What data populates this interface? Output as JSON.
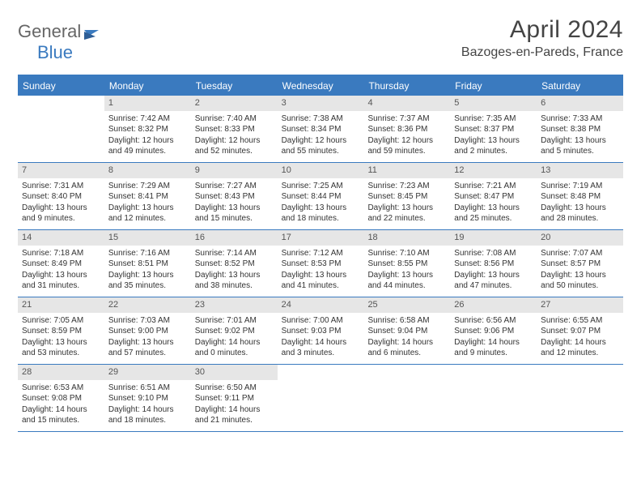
{
  "brand": {
    "part1": "General",
    "part2": "Blue"
  },
  "title": "April 2024",
  "location": "Bazoges-en-Pareds, France",
  "colors": {
    "accent": "#3a7abf",
    "header_bg": "#3a7abf",
    "daynum_bg": "#e6e6e6",
    "row_border": "#3a7abf",
    "text": "#333333",
    "title_text": "#444444"
  },
  "typography": {
    "title_fontsize": 30,
    "location_fontsize": 16,
    "header_fontsize": 12,
    "cell_fontsize": 10
  },
  "weekdays": [
    "Sunday",
    "Monday",
    "Tuesday",
    "Wednesday",
    "Thursday",
    "Friday",
    "Saturday"
  ],
  "first_weekday_offset": 1,
  "days": [
    {
      "n": 1,
      "sunrise": "7:42 AM",
      "sunset": "8:32 PM",
      "daylight": "12 hours and 49 minutes."
    },
    {
      "n": 2,
      "sunrise": "7:40 AM",
      "sunset": "8:33 PM",
      "daylight": "12 hours and 52 minutes."
    },
    {
      "n": 3,
      "sunrise": "7:38 AM",
      "sunset": "8:34 PM",
      "daylight": "12 hours and 55 minutes."
    },
    {
      "n": 4,
      "sunrise": "7:37 AM",
      "sunset": "8:36 PM",
      "daylight": "12 hours and 59 minutes."
    },
    {
      "n": 5,
      "sunrise": "7:35 AM",
      "sunset": "8:37 PM",
      "daylight": "13 hours and 2 minutes."
    },
    {
      "n": 6,
      "sunrise": "7:33 AM",
      "sunset": "8:38 PM",
      "daylight": "13 hours and 5 minutes."
    },
    {
      "n": 7,
      "sunrise": "7:31 AM",
      "sunset": "8:40 PM",
      "daylight": "13 hours and 9 minutes."
    },
    {
      "n": 8,
      "sunrise": "7:29 AM",
      "sunset": "8:41 PM",
      "daylight": "13 hours and 12 minutes."
    },
    {
      "n": 9,
      "sunrise": "7:27 AM",
      "sunset": "8:43 PM",
      "daylight": "13 hours and 15 minutes."
    },
    {
      "n": 10,
      "sunrise": "7:25 AM",
      "sunset": "8:44 PM",
      "daylight": "13 hours and 18 minutes."
    },
    {
      "n": 11,
      "sunrise": "7:23 AM",
      "sunset": "8:45 PM",
      "daylight": "13 hours and 22 minutes."
    },
    {
      "n": 12,
      "sunrise": "7:21 AM",
      "sunset": "8:47 PM",
      "daylight": "13 hours and 25 minutes."
    },
    {
      "n": 13,
      "sunrise": "7:19 AM",
      "sunset": "8:48 PM",
      "daylight": "13 hours and 28 minutes."
    },
    {
      "n": 14,
      "sunrise": "7:18 AM",
      "sunset": "8:49 PM",
      "daylight": "13 hours and 31 minutes."
    },
    {
      "n": 15,
      "sunrise": "7:16 AM",
      "sunset": "8:51 PM",
      "daylight": "13 hours and 35 minutes."
    },
    {
      "n": 16,
      "sunrise": "7:14 AM",
      "sunset": "8:52 PM",
      "daylight": "13 hours and 38 minutes."
    },
    {
      "n": 17,
      "sunrise": "7:12 AM",
      "sunset": "8:53 PM",
      "daylight": "13 hours and 41 minutes."
    },
    {
      "n": 18,
      "sunrise": "7:10 AM",
      "sunset": "8:55 PM",
      "daylight": "13 hours and 44 minutes."
    },
    {
      "n": 19,
      "sunrise": "7:08 AM",
      "sunset": "8:56 PM",
      "daylight": "13 hours and 47 minutes."
    },
    {
      "n": 20,
      "sunrise": "7:07 AM",
      "sunset": "8:57 PM",
      "daylight": "13 hours and 50 minutes."
    },
    {
      "n": 21,
      "sunrise": "7:05 AM",
      "sunset": "8:59 PM",
      "daylight": "13 hours and 53 minutes."
    },
    {
      "n": 22,
      "sunrise": "7:03 AM",
      "sunset": "9:00 PM",
      "daylight": "13 hours and 57 minutes."
    },
    {
      "n": 23,
      "sunrise": "7:01 AM",
      "sunset": "9:02 PM",
      "daylight": "14 hours and 0 minutes."
    },
    {
      "n": 24,
      "sunrise": "7:00 AM",
      "sunset": "9:03 PM",
      "daylight": "14 hours and 3 minutes."
    },
    {
      "n": 25,
      "sunrise": "6:58 AM",
      "sunset": "9:04 PM",
      "daylight": "14 hours and 6 minutes."
    },
    {
      "n": 26,
      "sunrise": "6:56 AM",
      "sunset": "9:06 PM",
      "daylight": "14 hours and 9 minutes."
    },
    {
      "n": 27,
      "sunrise": "6:55 AM",
      "sunset": "9:07 PM",
      "daylight": "14 hours and 12 minutes."
    },
    {
      "n": 28,
      "sunrise": "6:53 AM",
      "sunset": "9:08 PM",
      "daylight": "14 hours and 15 minutes."
    },
    {
      "n": 29,
      "sunrise": "6:51 AM",
      "sunset": "9:10 PM",
      "daylight": "14 hours and 18 minutes."
    },
    {
      "n": 30,
      "sunrise": "6:50 AM",
      "sunset": "9:11 PM",
      "daylight": "14 hours and 21 minutes."
    }
  ],
  "labels": {
    "sunrise": "Sunrise:",
    "sunset": "Sunset:",
    "daylight": "Daylight:"
  }
}
